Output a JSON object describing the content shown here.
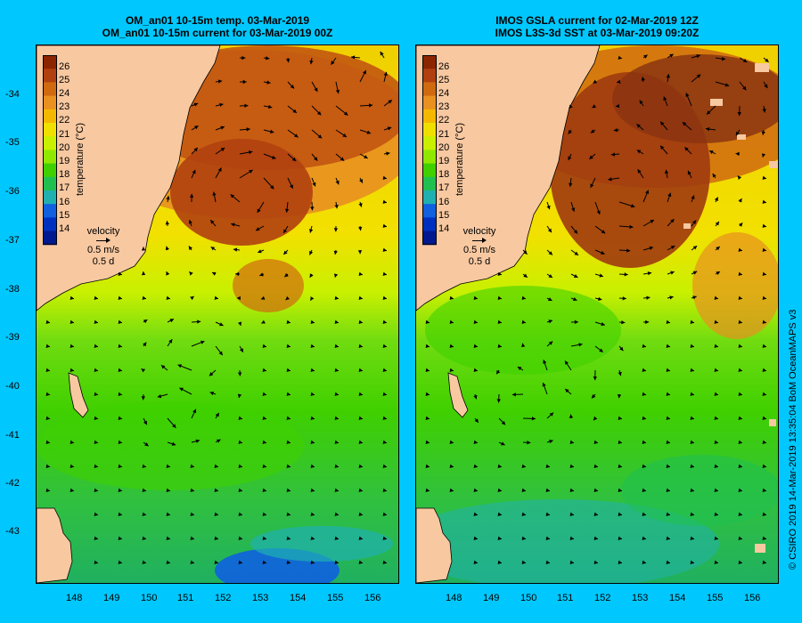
{
  "left_panel": {
    "title_line1": "OM_an01 10-15m temp. 03-Mar-2019",
    "title_line2": "OM_an01 10-15m current for 03-Mar-2019 00Z"
  },
  "right_panel": {
    "title_line1": "IMOS GSLA current for 02-Mar-2019 12Z",
    "title_line2": "IMOS L3S-3d SST at 03-Mar-2019 09:20Z"
  },
  "lat_labels": [
    "-34",
    "-35",
    "-36",
    "-37",
    "-38",
    "-39",
    "-40",
    "-41",
    "-42",
    "-43"
  ],
  "lon_labels": [
    "148",
    "149",
    "150",
    "151",
    "152",
    "153",
    "154",
    "155",
    "156"
  ],
  "legend": {
    "ticks": [
      "26",
      "25",
      "24",
      "23",
      "22",
      "21",
      "20",
      "19",
      "18",
      "17",
      "16",
      "15",
      "14"
    ],
    "title": "temperature (°C)",
    "colors": [
      "#8b2500",
      "#b04010",
      "#d06a10",
      "#e89020",
      "#f5b800",
      "#f0e000",
      "#c8f000",
      "#90e800",
      "#40d000",
      "#20c050",
      "#20b0b0",
      "#1060e0",
      "#0030c0",
      "#001890"
    ]
  },
  "velocity": {
    "label": "velocity",
    "speed": "0.5 m/s",
    "time": "0.5 d"
  },
  "credit": "© CSIRO 2019   14-Mar-2019 13:35:04 BoM OceanMAPS v3",
  "colors": {
    "background": "#00c8ff",
    "land": "#f8c8a0"
  }
}
